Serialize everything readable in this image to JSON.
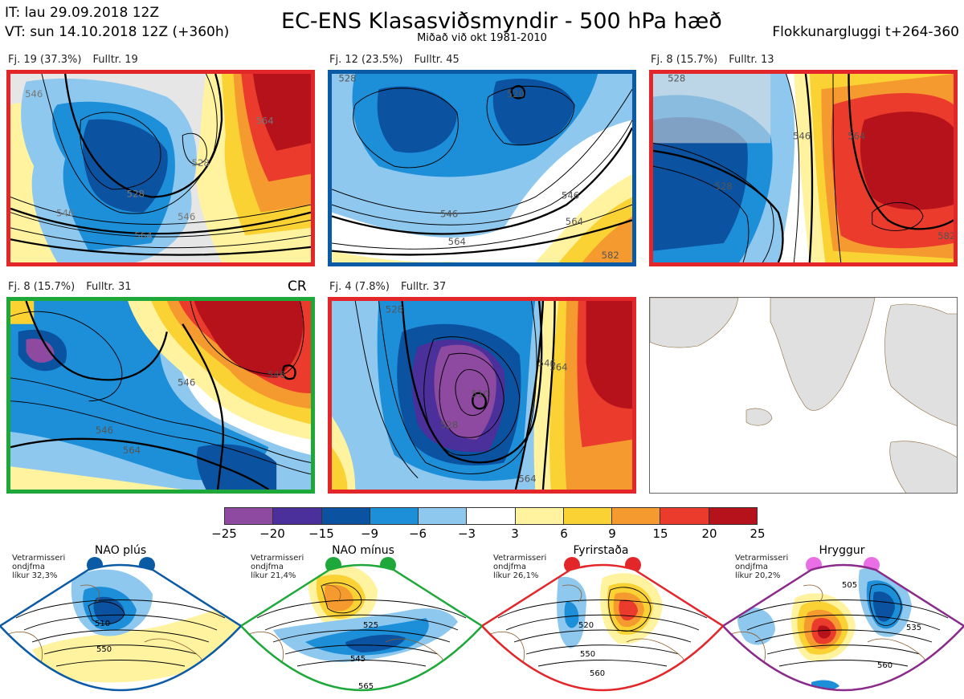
{
  "header": {
    "it_line": "IT: lau 29.09.2018 12Z",
    "vt_line": "VT: sun 14.10.2018 12Z  (+360h)",
    "title": "EC-ENS Klasasviðsmyndir - 500 hPa hæð",
    "subtitle": "Miðað við okt 1981-2010",
    "window": "Flokkunargluggi t+264-360"
  },
  "panels": [
    {
      "count": "Fj. 19 (37.3%)",
      "rep": "Fulltr. 19",
      "border": "#e3262a",
      "labels": [
        "546",
        "528",
        "546",
        "564",
        "546",
        "528",
        "564"
      ]
    },
    {
      "count": "Fj. 12 (23.5%)",
      "rep": "Fulltr. 45",
      "border": "#0b5aa5",
      "labels": [
        "528",
        "520",
        "546",
        "564",
        "546",
        "564",
        "582"
      ]
    },
    {
      "count": "Fj. 8 (15.7%)",
      "rep": "Fulltr. 13",
      "border": "#e3262a",
      "labels": [
        "528",
        "546",
        "564",
        "528",
        "582"
      ]
    },
    {
      "count": "Fj. 8 (15.7%)",
      "rep": "Fulltr. 31",
      "border": "#1fa83a",
      "corner": "CR",
      "labels": [
        "546",
        "546",
        "564",
        "546"
      ]
    },
    {
      "count": "Fj. 4 (7.8%)",
      "rep": "Fulltr. 37",
      "border": "#e3262a",
      "labels": [
        "528",
        "510",
        "528",
        "546",
        "564",
        "564"
      ]
    }
  ],
  "colorbar": {
    "ticks": [
      "−25",
      "−20",
      "−15",
      "−9",
      "−6",
      "−3",
      "3",
      "6",
      "9",
      "15",
      "20",
      "25"
    ],
    "colors": [
      "#8e4aa0",
      "#4b2f9a",
      "#0b52a0",
      "#1d8fd9",
      "#8ec8ee",
      "#ffffff",
      "#fff3a0",
      "#fbd234",
      "#f59a2e",
      "#ea3b2c",
      "#b5121b"
    ]
  },
  "regimes": [
    {
      "name": "NAO plús",
      "note": "Vetrarmisseri\nondjfma\nlíkur 32,3%",
      "color": "#0b5aa5",
      "dot": "#0b5aa5",
      "labels": [
        "510",
        "550"
      ]
    },
    {
      "name": "NAO mínus",
      "note": "Vetrarmisseri\nondjfma\nlíkur 21,4%",
      "color": "#1fa83a",
      "dot": "#1fa83a",
      "labels": [
        "525",
        "545",
        "565"
      ]
    },
    {
      "name": "Fyrirstaða",
      "note": "Vetrarmisseri\nondjfma\nlíkur 26,1%",
      "color": "#e3262a",
      "dot": "#e3262a",
      "labels": [
        "520",
        "550",
        "560"
      ]
    },
    {
      "name": "Hryggur",
      "note": "Vetrarmisseri\nondjfma\nlíkur 20,2%",
      "color": "#8a2a8a",
      "dot": "#ea6ee6",
      "labels": [
        "505",
        "535",
        "560"
      ]
    }
  ]
}
